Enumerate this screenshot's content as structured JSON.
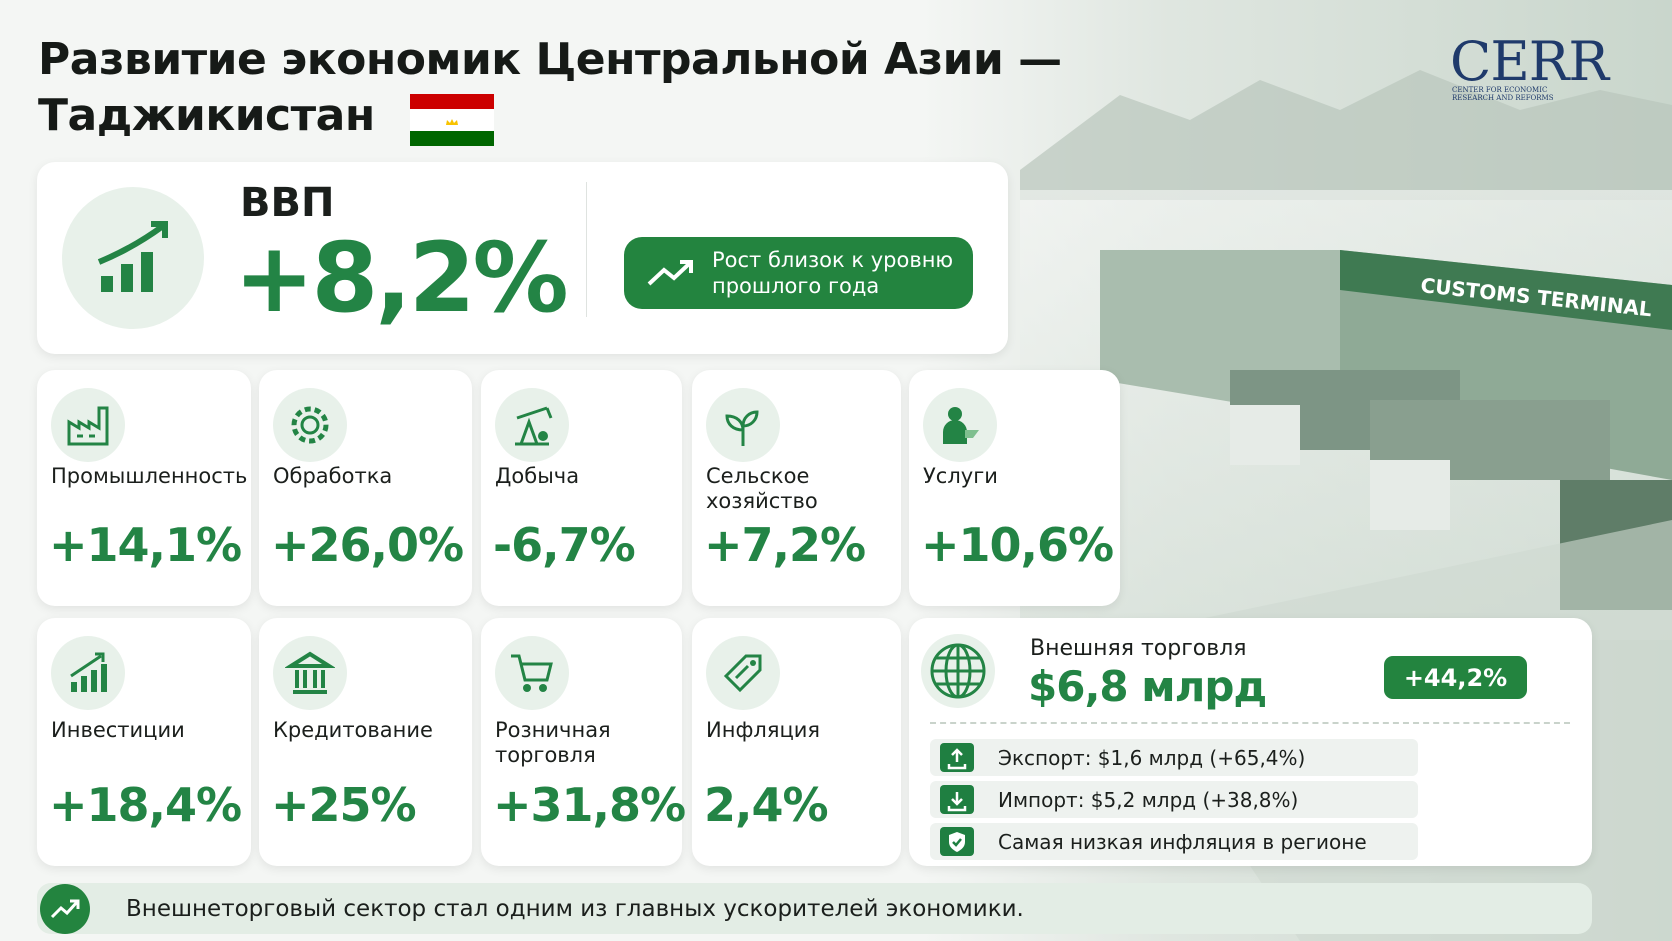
{
  "header": {
    "title_lines": [
      "Развитие экономик Центральной Азии —",
      "Таджикистан"
    ],
    "logo": "CERR",
    "logo_sub": [
      "CENTER FOR ECONOMIC",
      "RESEARCH AND REFORMS"
    ]
  },
  "gdp": {
    "label": "ВВП",
    "value": "+8,2%",
    "note_lines": [
      "Рост близок к уровню",
      "прошлого года"
    ]
  },
  "sectors": [
    {
      "label_lines": [
        "Промышленность"
      ],
      "value": "+14,1%"
    },
    {
      "label_lines": [
        "Обработка"
      ],
      "value": "+26,0%"
    },
    {
      "label_lines": [
        "Добыча"
      ],
      "value": "-6,7%"
    },
    {
      "label_lines": [
        "Сельское",
        "хозяйство"
      ],
      "value": "+7,2%"
    },
    {
      "label_lines": [
        "Услуги"
      ],
      "value": "+10,6%"
    },
    {
      "label_lines": [
        "Инвестиции"
      ],
      "value": "+18,4%"
    },
    {
      "label_lines": [
        "Кредитование"
      ],
      "value": "+25%"
    },
    {
      "label_lines": [
        "Розничная",
        "торговля"
      ],
      "value": "+31,8%"
    },
    {
      "label_lines": [
        "Инфляция"
      ],
      "value": "2,4%"
    }
  ],
  "trade": {
    "title": "Внешняя торговля",
    "value": "$6,8 млрд",
    "growth": "+44,2%",
    "items": [
      "Экспорт: $1,6 млрд (+65,4%)",
      "Импорт: $5,2 млрд (+38,8%)",
      "Самая низкая инфляция в регионе"
    ]
  },
  "photo_sign": "CUSTOMS TERMINAL",
  "footer": "Внешнеторговый сектор стал одним из главных ускорителей экономики."
}
